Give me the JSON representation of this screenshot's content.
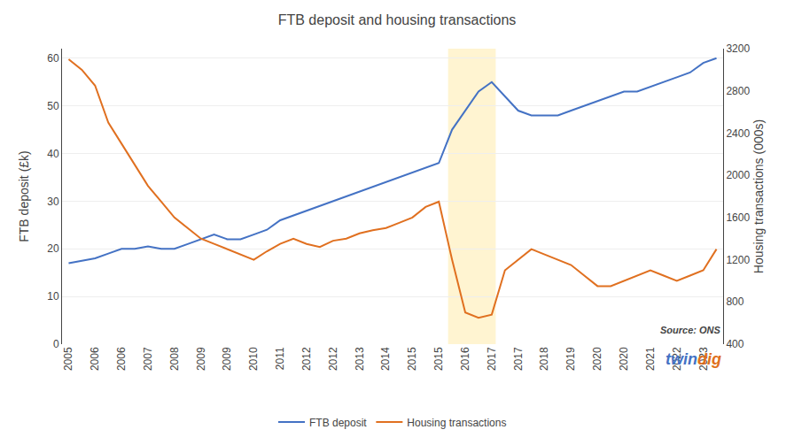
{
  "chart_data": {
    "type": "line",
    "title": "FTB deposit and housing transactions",
    "ylabel": "FTB deposit (£k)",
    "y2label": "Housing transactions (000s)",
    "categories": [
      "2005",
      null,
      "2006",
      null,
      "2006",
      null,
      "2007",
      null,
      "2008",
      null,
      "2009",
      null,
      "2009",
      null,
      "2010",
      null,
      "2011",
      null,
      "2012",
      null,
      "2012",
      null,
      "2013",
      null,
      "2014",
      null,
      "2015",
      null,
      "2015",
      null,
      "2016",
      null,
      "2017",
      null,
      "2017",
      null,
      "2018",
      null,
      "2019",
      null,
      "2020",
      null,
      "2020",
      null,
      "2021",
      null,
      "2022",
      null,
      "2023",
      null
    ],
    "series": [
      {
        "name": "FTB deposit",
        "color": "#4472C4",
        "axis": "y",
        "values": [
          17,
          17.5,
          18,
          19,
          20,
          20,
          20.5,
          20,
          20,
          21,
          22,
          23,
          22,
          22,
          23,
          24,
          26,
          27,
          28,
          29,
          30,
          31,
          32,
          33,
          34,
          35,
          36,
          37,
          38,
          45,
          49,
          53,
          55,
          52,
          49,
          48,
          48,
          48,
          49,
          50,
          51,
          52,
          53,
          53,
          54,
          55,
          56,
          57,
          59,
          60
        ]
      },
      {
        "name": "Housing transactions",
        "color": "#E07020",
        "axis": "y2",
        "values": [
          3100,
          3000,
          2850,
          2500,
          2300,
          2100,
          1900,
          1750,
          1600,
          1500,
          1400,
          1350,
          1300,
          1250,
          1200,
          1280,
          1350,
          1400,
          1350,
          1320,
          1380,
          1400,
          1450,
          1480,
          1500,
          1550,
          1600,
          1700,
          1750,
          1200,
          700,
          650,
          680,
          1100,
          1200,
          1300,
          1250,
          1200,
          1150,
          1050,
          950,
          950,
          1000,
          1050,
          1100,
          1050,
          1000,
          1050,
          1100,
          1300
        ]
      }
    ],
    "ylim": [
      0,
      62
    ],
    "yticks": [
      0,
      10,
      20,
      30,
      40,
      50,
      60
    ],
    "y2lim": [
      400,
      3200
    ],
    "y2ticks": [
      400,
      800,
      1200,
      1600,
      2000,
      2400,
      2800,
      3200
    ],
    "highlight": {
      "start": 29,
      "end": 32,
      "color": "#FFF3CC"
    },
    "grid": true,
    "legend": "bottom",
    "annotations": [
      {
        "text": "Source: ONS"
      },
      {
        "parts": [
          {
            "text": "twin",
            "color": "#4472C4"
          },
          {
            "text": "dig",
            "color": "#E07020"
          }
        ]
      }
    ]
  }
}
